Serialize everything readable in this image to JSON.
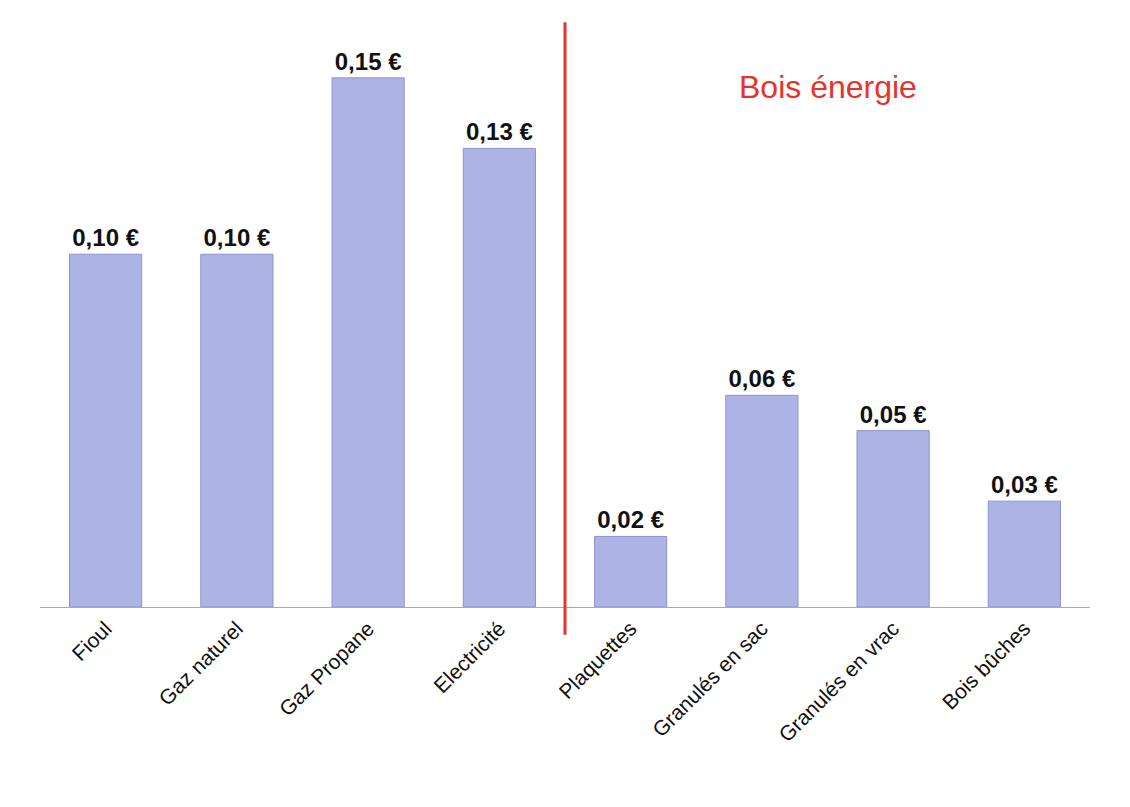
{
  "chart_data": {
    "type": "bar",
    "categories": [
      "Fioul",
      "Gaz naturel",
      "Gaz Propane",
      "Electricité",
      "Plaquettes",
      "Granulés en sac",
      "Granulés en vrac",
      "Bois bûches"
    ],
    "values": [
      0.1,
      0.1,
      0.15,
      0.13,
      0.02,
      0.06,
      0.05,
      0.03
    ],
    "value_labels": [
      "0,10 €",
      "0,10 €",
      "0,15 €",
      "0,13 €",
      "0,02 €",
      "0,06 €",
      "0,05 €",
      "0,03 €"
    ],
    "color": "#aeb3e6",
    "data_labels": true,
    "tick_labels": "x",
    "grid": false,
    "annotations": [
      {
        "text": "Bois énergie"
      }
    ]
  }
}
